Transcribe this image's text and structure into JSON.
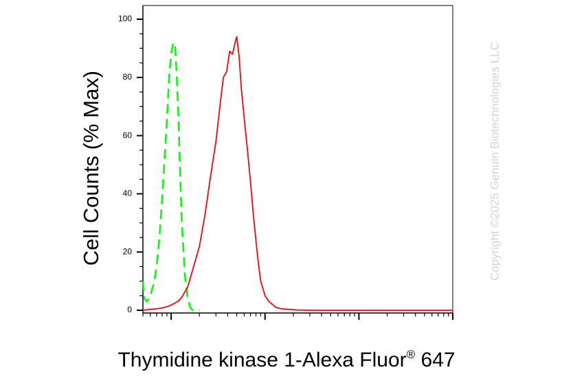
{
  "chart_data": {
    "type": "line",
    "xlabel_main": "Thymidine kinase 1-Alexa Fluor",
    "xlabel_reg": "®",
    "xlabel_tail": "647",
    "ylabel": "Cell Counts (% Max)",
    "ylim": [
      0,
      100
    ],
    "yticks": [
      "0",
      "20",
      "40",
      "60",
      "80",
      "100"
    ],
    "x_scale": "log",
    "xlim": [
      0.5,
      1000
    ],
    "x_tick_labels": "none",
    "grid": false,
    "legend": "none",
    "series": [
      {
        "color": "#00ff00",
        "style": "dashed",
        "x": [
          0.5,
          0.52,
          0.55,
          0.6,
          0.65,
          0.7,
          0.75,
          0.8,
          0.85,
          0.9,
          0.95,
          1.0,
          1.05,
          1.1,
          1.15,
          1.2,
          1.25,
          1.3,
          1.4,
          1.5,
          1.6,
          1.7,
          1.8,
          1.9,
          2.0
        ],
        "y": [
          10,
          4,
          3,
          5,
          9,
          15,
          25,
          38,
          52,
          65,
          80,
          88,
          92,
          91,
          80,
          65,
          45,
          30,
          12,
          4,
          1,
          0,
          0,
          0,
          0
        ]
      },
      {
        "color": "#ff0000",
        "style": "solid",
        "x": [
          0.5,
          0.6,
          0.7,
          0.8,
          0.9,
          1.0,
          1.1,
          1.2,
          1.3,
          1.5,
          1.7,
          2.0,
          2.3,
          2.6,
          3.0,
          3.3,
          3.6,
          3.9,
          4.2,
          4.5,
          4.8,
          5.0,
          5.3,
          5.6,
          6.0,
          6.5,
          7.0,
          7.5,
          8.0,
          8.5,
          9.0,
          10,
          11,
          12,
          13,
          15,
          18,
          22,
          30,
          50,
          100,
          1000
        ],
        "y": [
          0,
          0.3,
          0.5,
          0.8,
          1.2,
          1.8,
          2.5,
          3.2,
          4.5,
          8,
          14,
          22,
          33,
          45,
          58,
          70,
          80,
          82,
          89,
          88,
          92,
          94,
          87,
          76,
          66,
          55,
          44,
          33,
          24,
          16,
          10,
          5,
          3,
          2,
          1,
          0.5,
          0.3,
          0.1,
          0,
          0,
          0,
          0
        ]
      }
    ]
  },
  "watermark": "Copyright ©2025 Genuin Biotechnologies LLC",
  "colors": {
    "axis": "#000000",
    "isotype": "#00ff00",
    "sample": "#ff0000",
    "watermark": "#d4d4d4"
  }
}
